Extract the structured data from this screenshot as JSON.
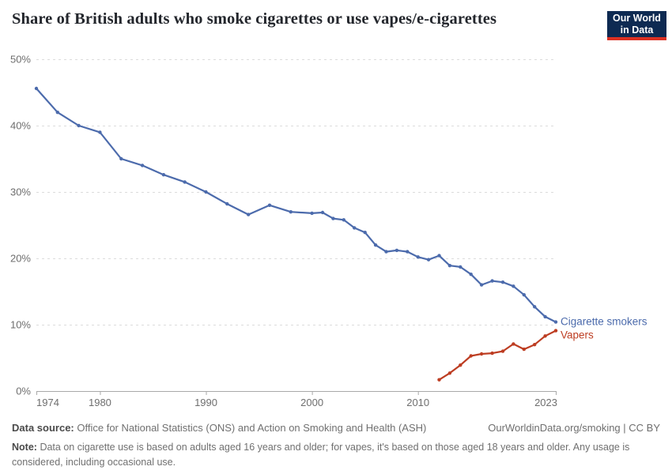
{
  "header": {
    "title": "Share of British adults who smoke cigarettes or use vapes/e-cigarettes",
    "logo": {
      "line1": "Our World",
      "line2": "in Data",
      "bg_color": "#0e2a52",
      "accent_color": "#dc3022"
    }
  },
  "chart_data": {
    "type": "line",
    "title": "Share of British adults who smoke cigarettes or use vapes/e-cigarettes",
    "xlabel": "",
    "ylabel": "",
    "xlim": [
      1974,
      2023
    ],
    "ylim": [
      0,
      50
    ],
    "grid": "horizontal-dashed",
    "legend_position": "end-of-line-labels",
    "x_ticks": [
      1974,
      1980,
      1990,
      2000,
      2010,
      2023
    ],
    "y_ticks": [
      {
        "value": 0,
        "label": "0%"
      },
      {
        "value": 10,
        "label": "10%"
      },
      {
        "value": 20,
        "label": "20%"
      },
      {
        "value": 30,
        "label": "30%"
      },
      {
        "value": 40,
        "label": "40%"
      },
      {
        "value": 50,
        "label": "50%"
      }
    ],
    "series": [
      {
        "name": "Cigarette smokers",
        "color": "#4c6bac",
        "label_dy": 4,
        "points": [
          [
            1974,
            45.6
          ],
          [
            1976,
            42.0
          ],
          [
            1978,
            40.0
          ],
          [
            1980,
            39.0
          ],
          [
            1982,
            35.0
          ],
          [
            1984,
            34.0
          ],
          [
            1986,
            32.6
          ],
          [
            1988,
            31.5
          ],
          [
            1990,
            30.0
          ],
          [
            1992,
            28.2
          ],
          [
            1994,
            26.6
          ],
          [
            1996,
            28.0
          ],
          [
            1998,
            27.0
          ],
          [
            2000,
            26.8
          ],
          [
            2001,
            26.9
          ],
          [
            2002,
            26.0
          ],
          [
            2003,
            25.8
          ],
          [
            2004,
            24.6
          ],
          [
            2005,
            23.9
          ],
          [
            2006,
            22.0
          ],
          [
            2007,
            21.0
          ],
          [
            2008,
            21.2
          ],
          [
            2009,
            21.0
          ],
          [
            2010,
            20.2
          ],
          [
            2011,
            19.8
          ],
          [
            2012,
            20.4
          ],
          [
            2013,
            18.9
          ],
          [
            2014,
            18.7
          ],
          [
            2015,
            17.6
          ],
          [
            2016,
            16.0
          ],
          [
            2017,
            16.6
          ],
          [
            2018,
            16.4
          ],
          [
            2019,
            15.8
          ],
          [
            2020,
            14.5
          ],
          [
            2021,
            12.7
          ],
          [
            2022,
            11.2
          ],
          [
            2023,
            10.4
          ]
        ]
      },
      {
        "name": "Vapers",
        "color": "#bd3d22",
        "label_dy": 10,
        "points": [
          [
            2012,
            1.7
          ],
          [
            2013,
            2.7
          ],
          [
            2014,
            3.9
          ],
          [
            2015,
            5.3
          ],
          [
            2016,
            5.6
          ],
          [
            2017,
            5.7
          ],
          [
            2018,
            6.0
          ],
          [
            2019,
            7.1
          ],
          [
            2020,
            6.3
          ],
          [
            2021,
            7.0
          ],
          [
            2022,
            8.3
          ],
          [
            2023,
            9.1
          ]
        ]
      }
    ]
  },
  "footer": {
    "source_label": "Data source:",
    "source_text": "Office for National Statistics (ONS) and Action on Smoking and Health (ASH)",
    "attribution": "OurWorldinData.org/smoking | CC BY",
    "note_label": "Note:",
    "note_text": "Data on cigarette use is based on adults aged 16 years and older; for vapes, it's based on those aged 18 years and older. Any usage is considered, including occasional use."
  }
}
